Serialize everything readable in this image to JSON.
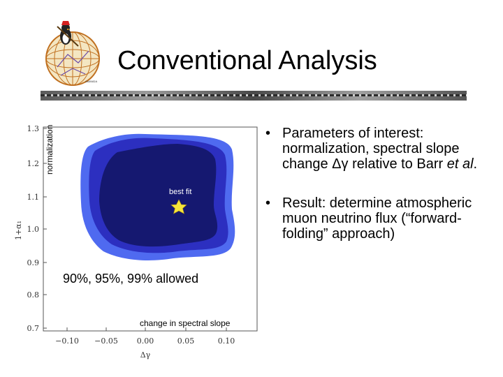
{
  "slide": {
    "title": "Conventional Analysis",
    "bullets": [
      {
        "text_html": "Parameters of interest: normalization, spectral slope change &Delta;&gamma; relative to Barr <i>et al</i>."
      },
      {
        "text_html": "Result: determine atmospheric muon neutrino flux (&ldquo;forward-folding&rdquo; approach)"
      }
    ],
    "bullet_marker": "•"
  },
  "plot": {
    "normalization_label": "normalization",
    "ylabel": "1+α₁",
    "xlabel": "Δγ",
    "yticks": [
      "0.7",
      "0.8",
      "0.9",
      "1.0",
      "1.1",
      "1.2",
      "1.3"
    ],
    "xticks": [
      "−0.10",
      "−0.05",
      "0.00",
      "0.05",
      "0.10"
    ],
    "best_fit_label": "best fit",
    "allowed_label": "90%, 95%, 99% allowed",
    "slope_label": "change in spectral slope",
    "best_fit_point": {
      "x": 0.02,
      "y": 1.08
    },
    "colors": {
      "c99": "#4f6af0",
      "c95": "#2c2fc0",
      "c90": "#151870",
      "star": "#f5e53b"
    }
  }
}
